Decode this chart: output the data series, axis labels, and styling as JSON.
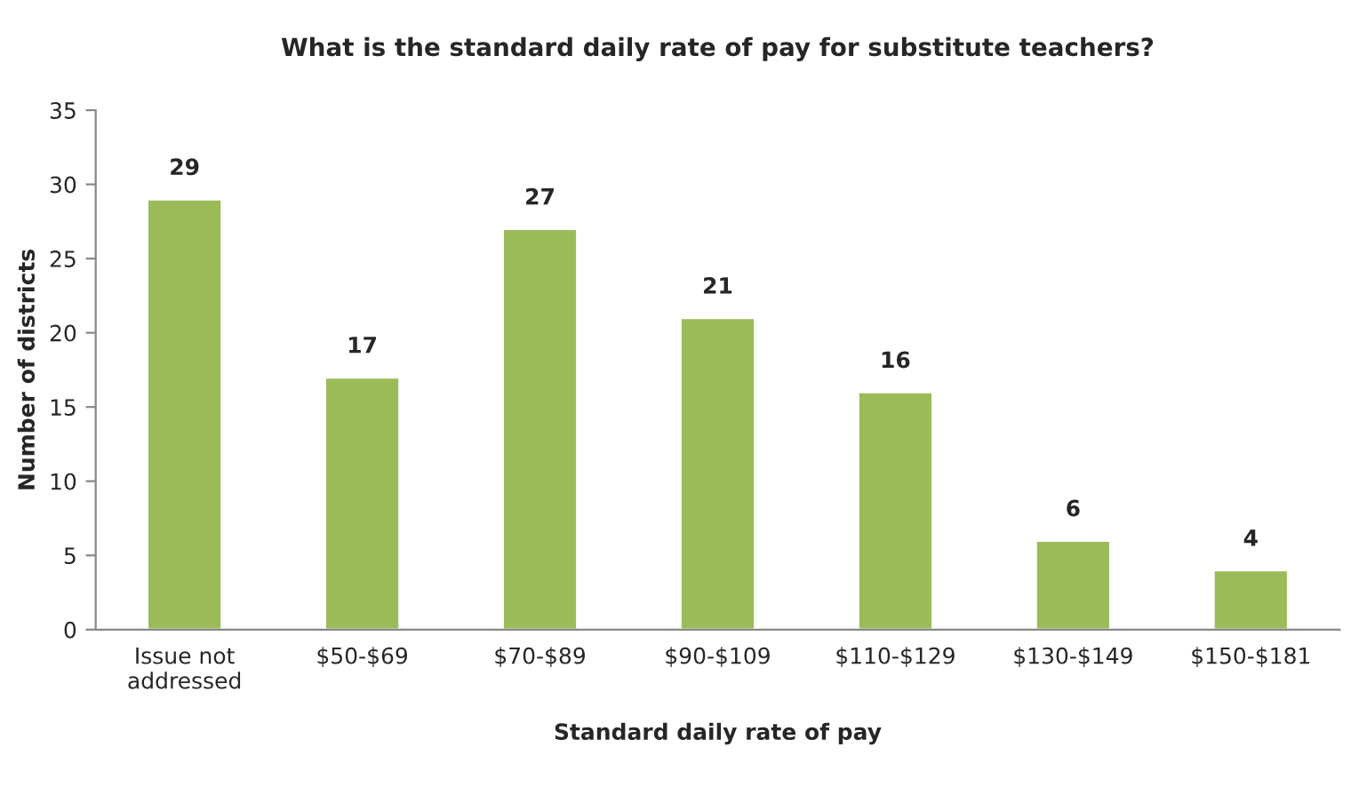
{
  "chart_data": {
    "type": "bar",
    "title": "What is the standard daily rate of pay for substitute teachers?",
    "xlabel": "Standard daily rate of pay",
    "ylabel": "Number of districts",
    "categories": [
      "Issue not\naddressed",
      "$50-$69",
      "$70-$89",
      "$90-$109",
      "$110-$129",
      "$130-$149",
      "$150-$181"
    ],
    "values": [
      29,
      17,
      27,
      21,
      16,
      6,
      4
    ],
    "color": "#9bbb59",
    "ylim": [
      0,
      35
    ],
    "yticks": [
      0,
      5,
      10,
      15,
      20,
      25,
      30,
      35
    ],
    "grid": false,
    "legend": false,
    "data_labels": true
  }
}
